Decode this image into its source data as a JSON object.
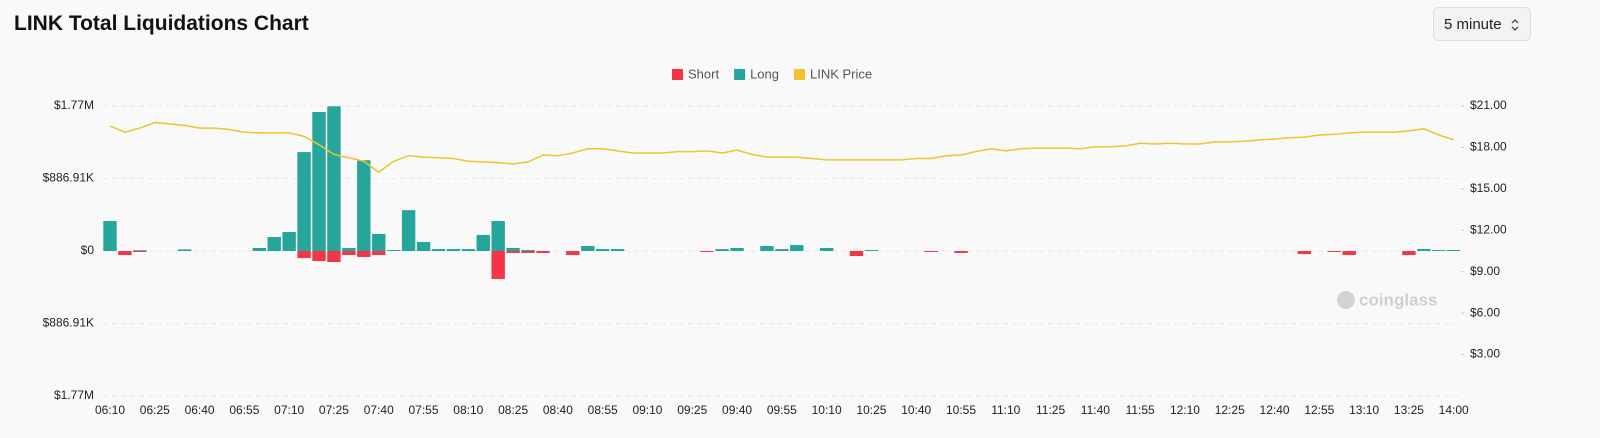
{
  "header": {
    "title": "LINK Total Liquidations Chart",
    "interval": "5 minute"
  },
  "chart_data": {
    "type": "bar-line",
    "watermark": "coinglass",
    "categories": [
      "06:10",
      null,
      null,
      "06:25",
      null,
      null,
      "06:40",
      null,
      null,
      "06:55",
      null,
      null,
      "07:10",
      null,
      null,
      "07:25",
      null,
      null,
      "07:40",
      null,
      null,
      "07:55",
      null,
      null,
      "08:10",
      null,
      null,
      "08:25",
      null,
      null,
      "08:40",
      null,
      null,
      "08:55",
      null,
      null,
      "09:10",
      null,
      null,
      "09:25",
      null,
      null,
      "09:40",
      null,
      null,
      "09:55",
      null,
      null,
      "10:10",
      null,
      null,
      "10:25",
      null,
      null,
      "10:40",
      null,
      null,
      "10:55",
      null,
      null,
      "11:10",
      null,
      null,
      "11:25",
      null,
      null,
      "11:40",
      null,
      null,
      "11:55",
      null,
      null,
      "12:10",
      null,
      null,
      "12:25",
      null,
      null,
      "12:40",
      null,
      null,
      "12:55",
      null,
      null,
      "13:10",
      null,
      null,
      "13:25",
      null,
      null,
      "14:00"
    ],
    "series": [
      {
        "name": "Short",
        "color": "#f23645",
        "values": [
          0,
          -49000,
          -12000,
          0,
          0,
          0,
          0,
          0,
          0,
          0,
          0,
          0,
          0,
          -86000,
          -122000,
          -135000,
          -49000,
          -73000,
          -49000,
          0,
          0,
          0,
          0,
          0,
          0,
          0,
          -342000,
          -24000,
          -24000,
          -24000,
          0,
          -49000,
          0,
          0,
          0,
          0,
          0,
          0,
          0,
          0,
          -12000,
          0,
          0,
          0,
          0,
          0,
          0,
          0,
          0,
          0,
          -61000,
          0,
          0,
          0,
          0,
          -12000,
          0,
          -24000,
          0,
          0,
          0,
          0,
          0,
          0,
          0,
          0,
          0,
          0,
          0,
          0,
          0,
          0,
          0,
          0,
          0,
          0,
          0,
          0,
          0,
          0,
          -37000,
          0,
          -12000,
          -49000,
          0,
          0,
          0,
          -49000,
          0,
          0,
          0
        ]
      },
      {
        "name": "Long",
        "color": "#26a69a",
        "values": [
          367000,
          0,
          10000,
          0,
          0,
          20000,
          0,
          0,
          0,
          0,
          37000,
          171000,
          232000,
          1210000,
          1700000,
          1770000,
          37000,
          1110000,
          208000,
          12000,
          500000,
          110000,
          24000,
          24000,
          24000,
          196000,
          367000,
          37000,
          12000,
          0,
          0,
          0,
          61000,
          24000,
          24000,
          0,
          0,
          0,
          0,
          0,
          0,
          24000,
          37000,
          0,
          61000,
          24000,
          73000,
          0,
          37000,
          0,
          0,
          12000,
          0,
          0,
          0,
          0,
          0,
          0,
          0,
          0,
          0,
          0,
          0,
          0,
          0,
          0,
          0,
          0,
          0,
          0,
          0,
          0,
          0,
          0,
          0,
          0,
          0,
          0,
          0,
          0,
          0,
          0,
          0,
          0,
          0,
          0,
          0,
          0,
          24000,
          12000,
          12000
        ]
      },
      {
        "name": "LINK Price",
        "color": "#f0c330",
        "axis": "y2",
        "values": [
          19.55,
          19.1,
          19.4,
          19.8,
          19.7,
          19.6,
          19.4,
          19.4,
          19.3,
          19.1,
          19.05,
          19.05,
          19.05,
          18.8,
          18.2,
          17.5,
          17.25,
          17.0,
          16.2,
          17.0,
          17.4,
          17.3,
          17.25,
          17.2,
          17.0,
          16.95,
          16.9,
          16.8,
          16.95,
          17.45,
          17.4,
          17.6,
          17.9,
          17.9,
          17.75,
          17.6,
          17.6,
          17.6,
          17.7,
          17.7,
          17.75,
          17.6,
          17.8,
          17.5,
          17.3,
          17.3,
          17.3,
          17.2,
          17.1,
          17.1,
          17.1,
          17.1,
          17.1,
          17.1,
          17.2,
          17.2,
          17.4,
          17.45,
          17.7,
          17.9,
          17.75,
          17.9,
          17.95,
          17.95,
          17.95,
          17.9,
          18.05,
          18.05,
          18.1,
          18.3,
          18.25,
          18.3,
          18.25,
          18.25,
          18.4,
          18.4,
          18.45,
          18.55,
          18.6,
          18.7,
          18.75,
          18.9,
          18.95,
          19.05,
          19.1,
          19.1,
          19.1,
          19.2,
          19.35,
          18.9,
          18.55
        ]
      }
    ],
    "ylim": [
      -1773820,
      1773820
    ],
    "yticks": [
      {
        "value": 1773820,
        "label": "$1.77M"
      },
      {
        "value": 886910,
        "label": "$886.91K"
      },
      {
        "value": 0,
        "label": "$0"
      },
      {
        "value": -886910,
        "label": "$886.91K"
      },
      {
        "value": -1773820,
        "label": "$1.77M"
      }
    ],
    "y2lim": [
      0,
      21
    ],
    "y2ticks": [
      {
        "value": 3,
        "label": "$3.00"
      },
      {
        "value": 6,
        "label": "$6.00"
      },
      {
        "value": 9,
        "label": "$9.00"
      },
      {
        "value": 12,
        "label": "$12.00"
      },
      {
        "value": 15,
        "label": "$15.00"
      },
      {
        "value": 18,
        "label": "$18.00"
      },
      {
        "value": 21,
        "label": "$21.00"
      }
    ],
    "grid": true
  }
}
